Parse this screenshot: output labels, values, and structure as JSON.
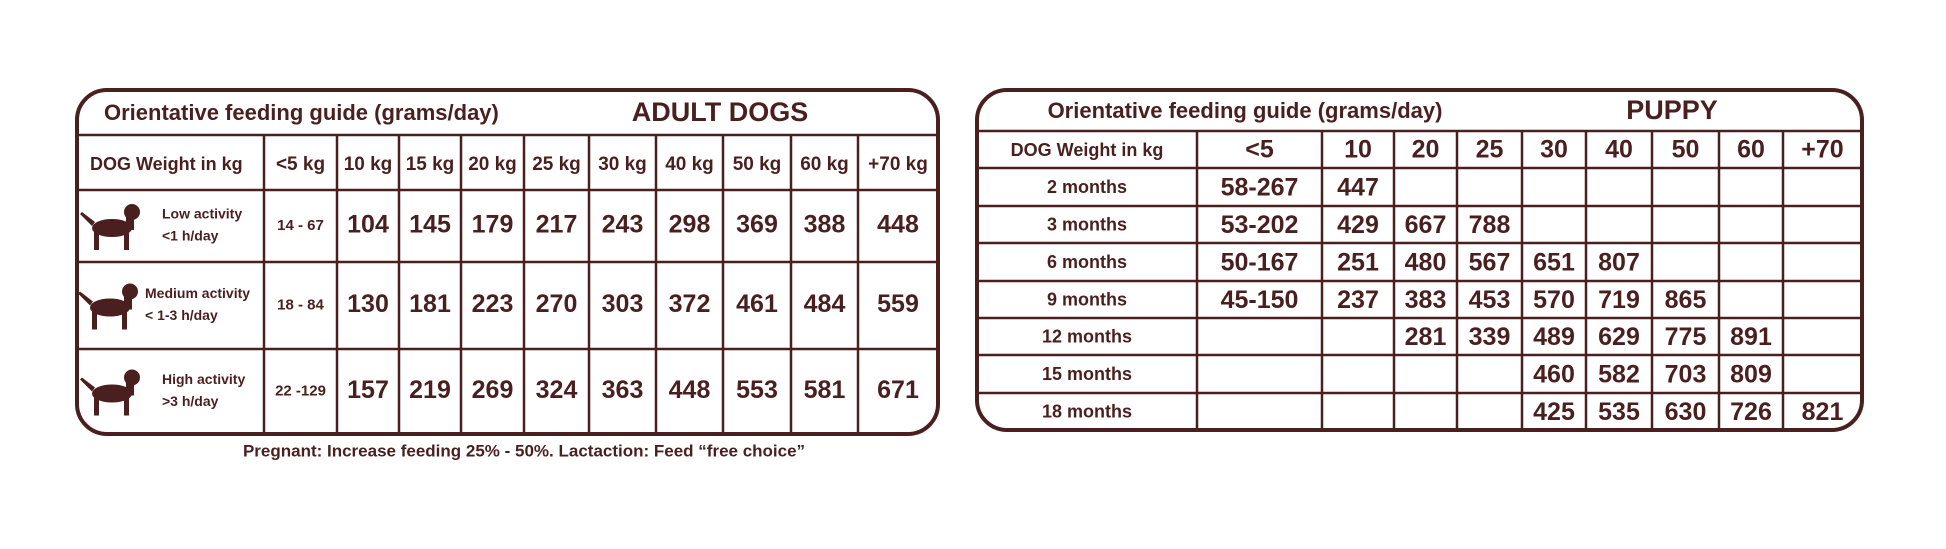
{
  "adult": {
    "title": "Orientative feeding guide (grams/day)",
    "heading": "ADULT DOGS",
    "columns": [
      "DOG Weight in kg",
      "<5 kg",
      "10 kg",
      "15 kg",
      "20 kg",
      "25 kg",
      "30 kg",
      "40 kg",
      "50 kg",
      "60 kg",
      "+70 kg"
    ],
    "rows": [
      {
        "activity": "Low activity",
        "hours": "<1 h/day",
        "values": [
          "14 - 67",
          104,
          145,
          179,
          217,
          243,
          298,
          369,
          388,
          448
        ]
      },
      {
        "activity": "Medium activity",
        "hours": "< 1-3 h/day",
        "values": [
          "18 - 84",
          130,
          181,
          223,
          270,
          303,
          372,
          461,
          484,
          559
        ]
      },
      {
        "activity": "High activity",
        "hours": ">3 h/day",
        "values": [
          "22 -129",
          157,
          219,
          269,
          324,
          363,
          448,
          553,
          581,
          671
        ]
      }
    ],
    "note": "Pregnant: Increase feeding 25% - 50%. Lactaction: Feed “free choice”"
  },
  "puppy": {
    "title": "Orientative feeding guide (grams/day)",
    "heading": "PUPPY",
    "columns": [
      "DOG Weight in kg",
      "<5",
      "10",
      "20",
      "25",
      "30",
      "40",
      "50",
      "60",
      "+70"
    ],
    "rows": [
      {
        "age": "2 months",
        "values": [
          "58-267",
          447,
          null,
          null,
          null,
          null,
          null,
          null,
          null
        ]
      },
      {
        "age": "3 months",
        "values": [
          "53-202",
          429,
          667,
          788,
          null,
          null,
          null,
          null,
          null
        ]
      },
      {
        "age": "6 months",
        "values": [
          "50-167",
          251,
          480,
          567,
          651,
          807,
          null,
          null,
          null
        ]
      },
      {
        "age": "9 months",
        "values": [
          "45-150",
          237,
          383,
          453,
          570,
          719,
          865,
          null,
          null
        ]
      },
      {
        "age": "12 months",
        "values": [
          null,
          null,
          281,
          339,
          489,
          629,
          775,
          891,
          null
        ]
      },
      {
        "age": "15 months",
        "values": [
          null,
          null,
          null,
          null,
          460,
          582,
          703,
          809,
          null
        ]
      },
      {
        "age": "18 months",
        "values": [
          null,
          null,
          null,
          null,
          425,
          535,
          630,
          726,
          821
        ]
      }
    ]
  }
}
